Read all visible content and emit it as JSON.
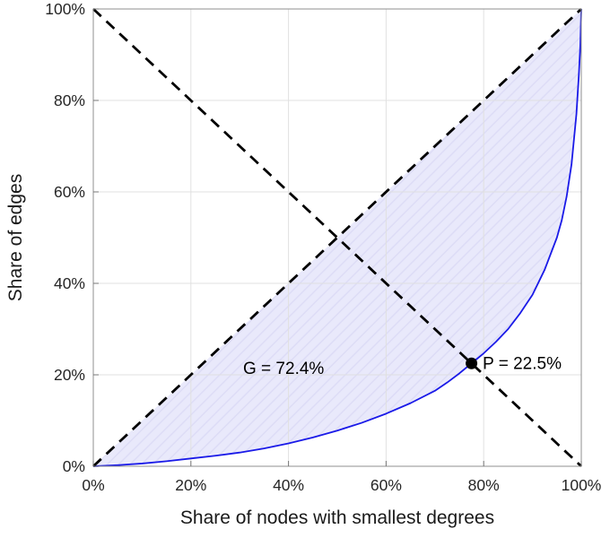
{
  "chart_data": {
    "type": "line",
    "title": "",
    "xlabel": "Share of nodes with smallest degrees",
    "ylabel": "Share of edges",
    "xlim": [
      0,
      100
    ],
    "ylim": [
      0,
      100
    ],
    "xticks": [
      0,
      20,
      40,
      60,
      80,
      100
    ],
    "yticks": [
      0,
      20,
      40,
      60,
      80,
      100
    ],
    "xtick_labels": [
      "0%",
      "20%",
      "40%",
      "60%",
      "80%",
      "100%"
    ],
    "ytick_labels": [
      "0%",
      "20%",
      "40%",
      "60%",
      "80%",
      "100%"
    ],
    "grid": true,
    "legend": "none",
    "series": [
      {
        "name": "lorenz-curve",
        "color": "#1a1ae8",
        "width": 1.8,
        "style": "solid",
        "points": [
          [
            0,
            0
          ],
          [
            5,
            0.25
          ],
          [
            10,
            0.6
          ],
          [
            15,
            1.1
          ],
          [
            20,
            1.7
          ],
          [
            25,
            2.3
          ],
          [
            30,
            3.0
          ],
          [
            35,
            3.9
          ],
          [
            40,
            5.0
          ],
          [
            45,
            6.3
          ],
          [
            50,
            7.8
          ],
          [
            55,
            9.5
          ],
          [
            60,
            11.5
          ],
          [
            65,
            13.8
          ],
          [
            70,
            16.5
          ],
          [
            72.5,
            18.3
          ],
          [
            75,
            20.3
          ],
          [
            77.5,
            22.5
          ],
          [
            80,
            24.7
          ],
          [
            82.5,
            27.2
          ],
          [
            85,
            30.0
          ],
          [
            87.5,
            33.5
          ],
          [
            90,
            37.5
          ],
          [
            92.5,
            43.0
          ],
          [
            95,
            50.0
          ],
          [
            96,
            53.8
          ],
          [
            97,
            59.0
          ],
          [
            98,
            66.0
          ],
          [
            99,
            77.0
          ],
          [
            99.5,
            85.5
          ],
          [
            99.8,
            92.0
          ],
          [
            100,
            100
          ]
        ]
      },
      {
        "name": "equality-diagonal-line",
        "color": "#000000",
        "width": 2.8,
        "style": "dashed",
        "points": [
          [
            0,
            0
          ],
          [
            100,
            100
          ]
        ]
      },
      {
        "name": "anti-diagonal-line",
        "color": "#000000",
        "width": 2.8,
        "style": "dashed",
        "points": [
          [
            0,
            100
          ],
          [
            100,
            0
          ]
        ]
      }
    ],
    "shaded_region": {
      "between": [
        "equality-diagonal-line",
        "lorenz-curve"
      ],
      "fill": "#e9e9fb",
      "stripe": "#dddcf6"
    },
    "marker_point": {
      "x": 77.5,
      "y": 22.5,
      "color": "#000000",
      "radius": 6.5
    },
    "annotations": [
      {
        "name": "gini-annotation",
        "text": "G = 72.4%",
        "x": 39,
        "y": 21.2,
        "anchor": "middle"
      },
      {
        "name": "p-annotation",
        "text": "P = 22.5%",
        "x": 79.8,
        "y": 22.3,
        "anchor": "start"
      }
    ],
    "axis": {
      "box_color": "#8f8f8f",
      "grid_color": "#e0e0e0",
      "tick_color": "#777777",
      "label_color": "#1a1a1a"
    }
  }
}
